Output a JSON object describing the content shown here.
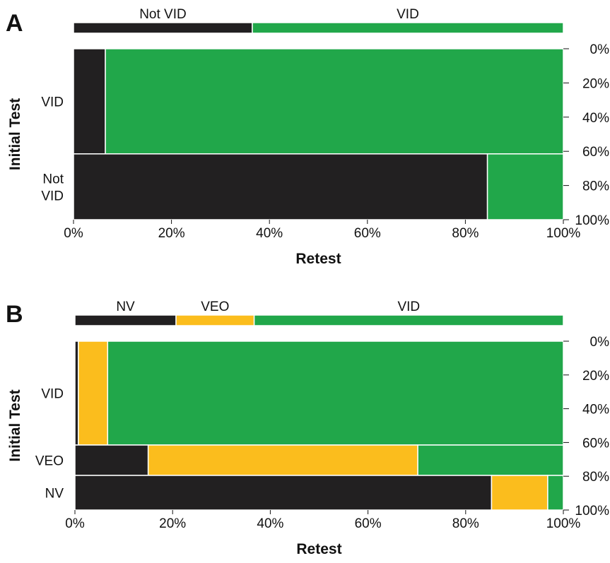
{
  "colors": {
    "not_vid": "#222021",
    "veo": "#fbbd1d",
    "vid": "#21a74a"
  },
  "chart_data": [
    {
      "type": "mosaic",
      "panel_label": "A",
      "xlabel": "Retest",
      "ylabel": "Initial Test",
      "x_ticks": [
        "0%",
        "20%",
        "40%",
        "60%",
        "80%",
        "100%"
      ],
      "y_ticks": [
        "0%",
        "20%",
        "40%",
        "60%",
        "80%",
        "100%"
      ],
      "retest_categories": [
        "Not VID",
        "VID"
      ],
      "retest_marginal": [
        0.365,
        0.635
      ],
      "rows": [
        {
          "label_lines": [
            "VID"
          ],
          "height": 0.615,
          "shares": [
            0.065,
            0.935
          ]
        },
        {
          "label_lines": [
            "Not",
            "VID"
          ],
          "height": 0.385,
          "shares": [
            0.845,
            0.155
          ]
        }
      ]
    },
    {
      "type": "mosaic",
      "panel_label": "B",
      "xlabel": "Retest",
      "ylabel": "Initial Test",
      "x_ticks": [
        "0%",
        "20%",
        "40%",
        "60%",
        "80%",
        "100%"
      ],
      "y_ticks": [
        "0%",
        "20%",
        "40%",
        "60%",
        "80%",
        "100%"
      ],
      "retest_categories": [
        "NV",
        "VEO",
        "VID"
      ],
      "retest_marginal": [
        0.207,
        0.16,
        0.633
      ],
      "rows": [
        {
          "label_lines": [
            "VID"
          ],
          "height": 0.615,
          "shares": [
            0.007,
            0.06,
            0.933
          ]
        },
        {
          "label_lines": [
            "VEO"
          ],
          "height": 0.18,
          "shares": [
            0.15,
            0.552,
            0.298
          ]
        },
        {
          "label_lines": [
            "NV"
          ],
          "height": 0.205,
          "shares": [
            0.853,
            0.115,
            0.032
          ]
        }
      ]
    }
  ]
}
